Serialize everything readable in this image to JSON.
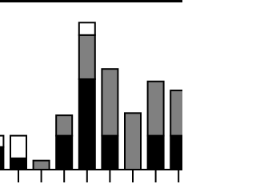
{
  "chart_data": {
    "type": "bar",
    "stacked": true,
    "categories": [
      null,
      null,
      null,
      null,
      null,
      null,
      null,
      null,
      null
    ],
    "series": [
      {
        "color": "#000000",
        "values": [
          2,
          1,
          0,
          3,
          8,
          3,
          0,
          3,
          3
        ]
      },
      {
        "color": "#808080",
        "values": [
          0,
          0,
          0.8,
          1.8,
          3.9,
          5.9,
          5,
          4.8,
          4
        ]
      },
      {
        "color": "#ffffff",
        "values": [
          1,
          2,
          0,
          0,
          1.1,
          0,
          0,
          0,
          0
        ]
      }
    ],
    "ylim": [
      0,
      15
    ]
  }
}
